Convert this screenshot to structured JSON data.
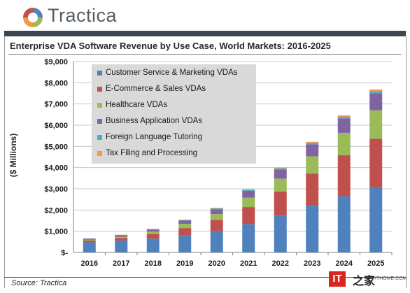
{
  "brand": {
    "logo_text": "Tractica",
    "logo_icon": "tractica-swirl-logo"
  },
  "chart_data": {
    "type": "bar",
    "stacked": true,
    "title": "Enterprise VDA Software Revenue by Use Case, World Markets: 2016-2025",
    "ylabel": "($ Millions)",
    "xlabel": "",
    "ylim": [
      0,
      9000
    ],
    "yticks": [
      "$-",
      "$1,000",
      "$2,000",
      "$3,000",
      "$4,000",
      "$5,000",
      "$6,000",
      "$7,000",
      "$8,000",
      "$9,000"
    ],
    "grid": true,
    "legend_position": "top-left",
    "categories": [
      "2016",
      "2017",
      "2018",
      "2019",
      "2020",
      "2021",
      "2022",
      "2023",
      "2024",
      "2025"
    ],
    "series": [
      {
        "name": "Customer Service & Marketing VDAs",
        "color": "#4f81bd",
        "values": [
          480,
          560,
          650,
          820,
          1020,
          1340,
          1740,
          2200,
          2650,
          3080
        ]
      },
      {
        "name": "E-Commerce & Sales VDAs",
        "color": "#c0504d",
        "values": [
          80,
          120,
          220,
          330,
          510,
          800,
          1130,
          1520,
          1930,
          2280
        ]
      },
      {
        "name": "Healthcare VDAs",
        "color": "#9bbb59",
        "values": [
          40,
          60,
          110,
          200,
          280,
          440,
          610,
          810,
          1060,
          1340
        ]
      },
      {
        "name": "Business Application VDAs",
        "color": "#8064a2",
        "values": [
          50,
          70,
          100,
          150,
          230,
          320,
          430,
          570,
          680,
          810
        ]
      },
      {
        "name": "Foreign Language Tutoring",
        "color": "#4bacc6",
        "values": [
          10,
          15,
          20,
          25,
          35,
          45,
          55,
          65,
          80,
          95
        ]
      },
      {
        "name": "Tax Filing and Processing",
        "color": "#f79646",
        "values": [
          5,
          10,
          15,
          20,
          25,
          30,
          40,
          50,
          60,
          75
        ]
      }
    ]
  },
  "source": "Source: Tractica",
  "watermark": {
    "mark": "IT",
    "text": "之家",
    "small": "ITHOME.COM"
  }
}
